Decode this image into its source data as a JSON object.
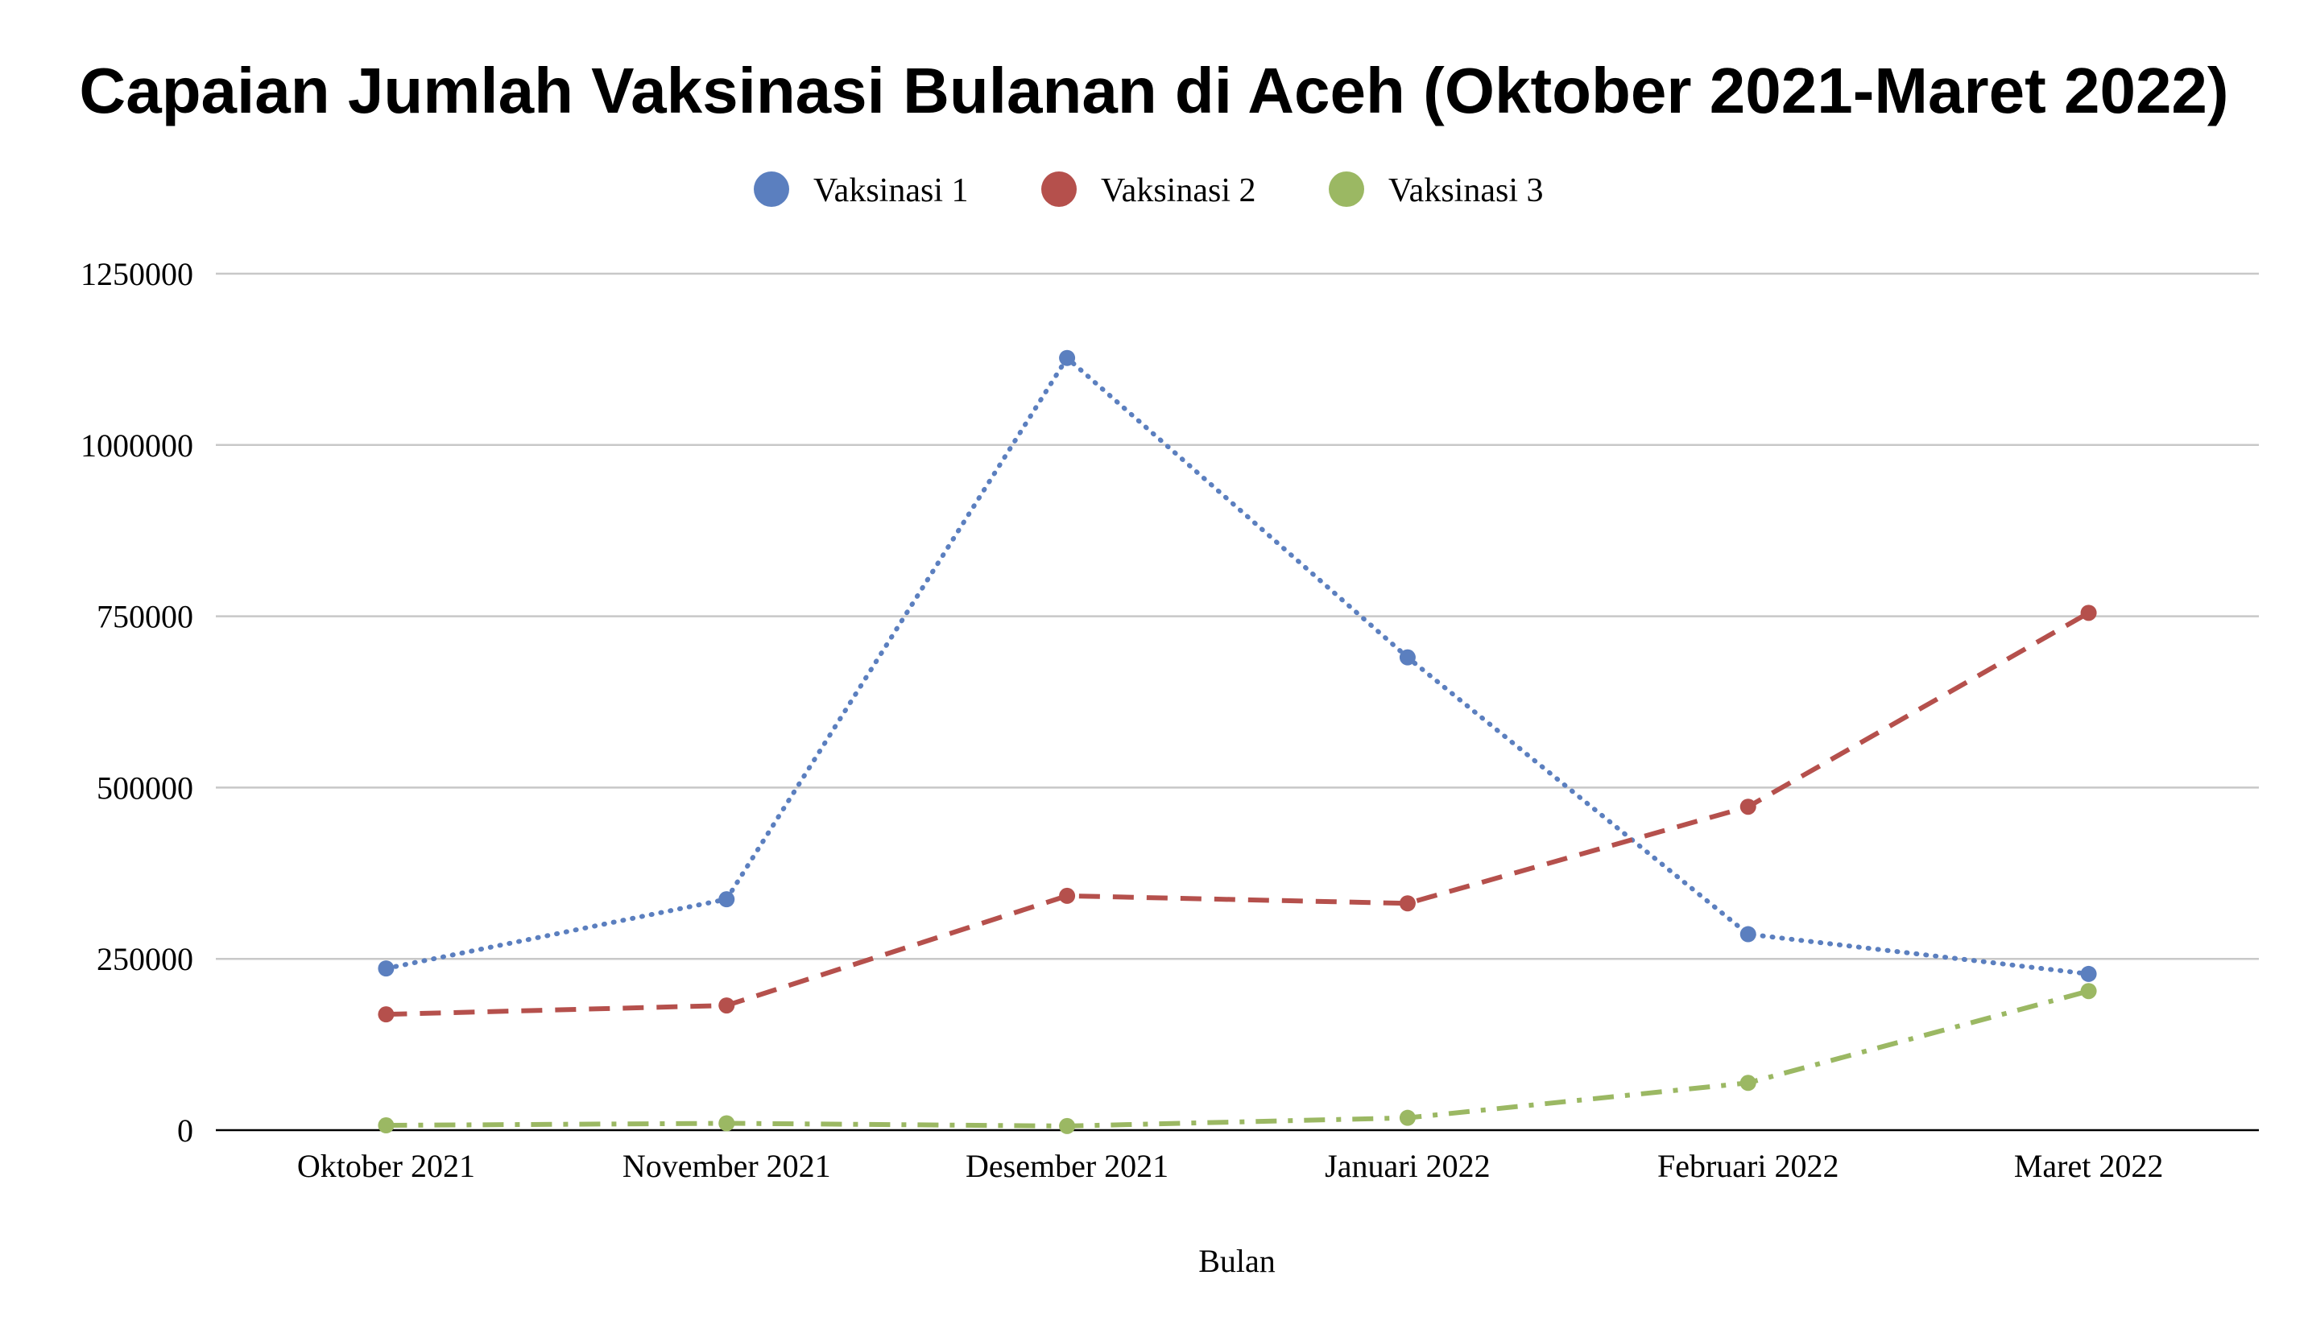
{
  "chart_data": {
    "type": "line",
    "title": "Capaian Jumlah Vaksinasi Bulanan di Aceh (Oktober 2021-Maret 2022)",
    "xlabel": "Bulan",
    "ylabel": "",
    "categories": [
      "Oktober 2021",
      "November 2021",
      "Desember 2021",
      "Januari 2022",
      "Februari 2022",
      "Maret 2022"
    ],
    "ylim": [
      0,
      1250000
    ],
    "yticks": [
      "0",
      "250000",
      "500000",
      "750000",
      "1000000",
      "1250000"
    ],
    "grid": true,
    "legend_position": "top",
    "series": [
      {
        "name": "Vaksinasi 1",
        "color": "#5b7fbf",
        "dash": "dotted",
        "values": [
          236000,
          337000,
          1127000,
          690000,
          286000,
          228000
        ]
      },
      {
        "name": "Vaksinasi 2",
        "color": "#b5504c",
        "dash": "dashed",
        "values": [
          169000,
          182000,
          342000,
          331000,
          472000,
          755000
        ]
      },
      {
        "name": "Vaksinasi 3",
        "color": "#9bb863",
        "dash": "dash-dot",
        "values": [
          7000,
          10000,
          6000,
          18000,
          69000,
          203000
        ]
      }
    ]
  }
}
